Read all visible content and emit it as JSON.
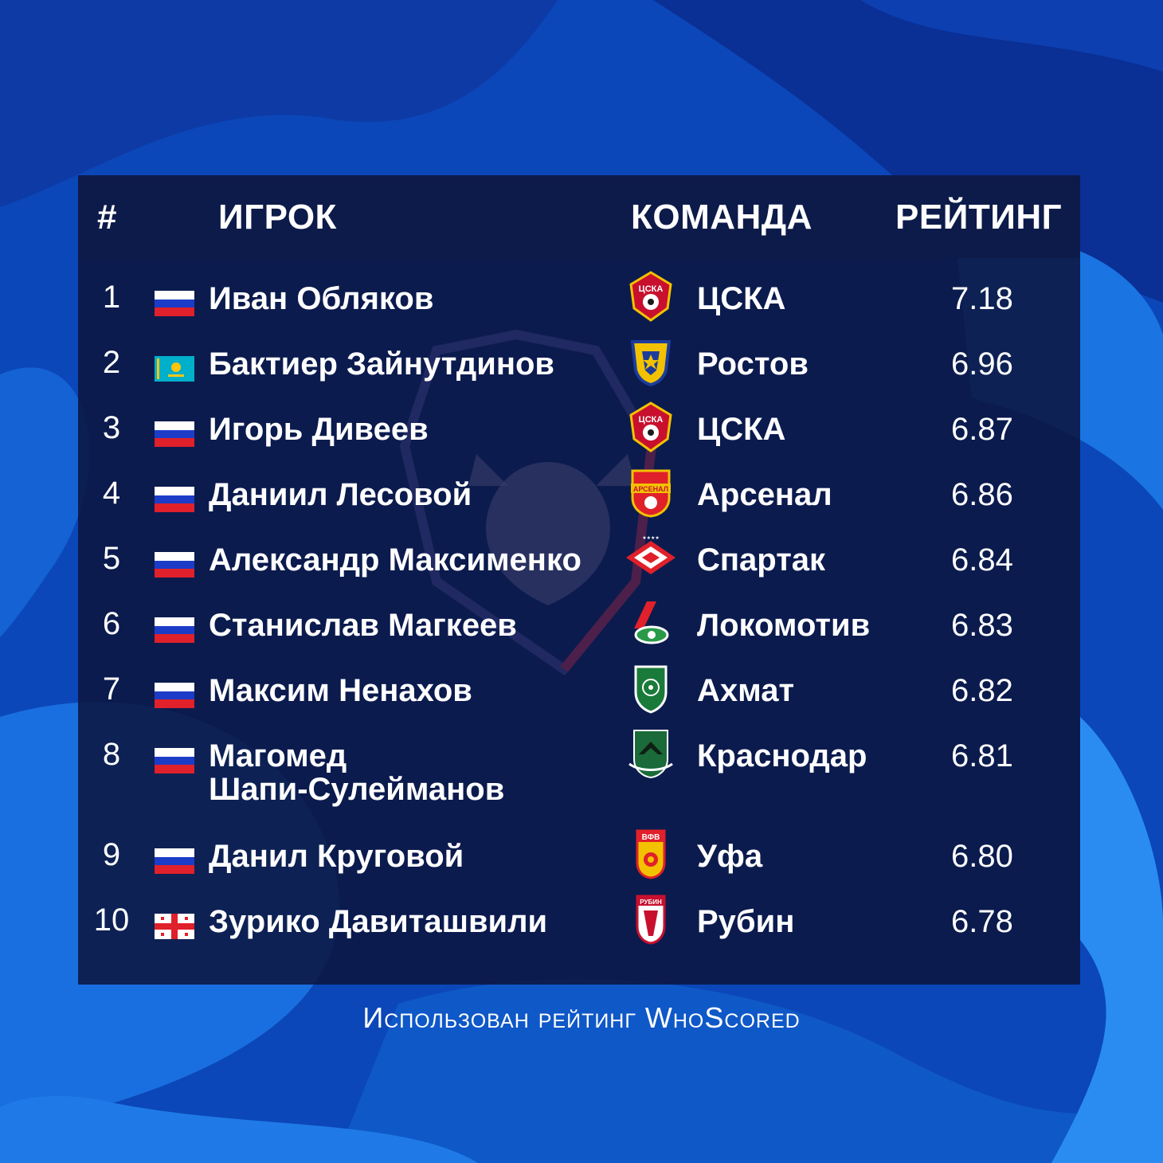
{
  "headers": {
    "rank": "#",
    "player": "ИГРОК",
    "team": "КОМАНДА",
    "rating": "РЕЙТИНГ"
  },
  "rows": [
    {
      "rank": "1",
      "flag": "russia-flag",
      "player": "Иван Обляков",
      "team": "ЦСКА",
      "crest": "cska-crest",
      "rating": "7.18"
    },
    {
      "rank": "2",
      "flag": "kazakhstan-flag",
      "player": "Бактиер Зайнутдинов",
      "team": "Ростов",
      "crest": "rostov-crest",
      "rating": "6.96"
    },
    {
      "rank": "3",
      "flag": "russia-flag",
      "player": "Игорь Дивеев",
      "team": "ЦСКА",
      "crest": "cska-crest",
      "rating": "6.87"
    },
    {
      "rank": "4",
      "flag": "russia-flag",
      "player": "Даниил Лесовой",
      "team": "Арсенал",
      "crest": "arsenal-crest",
      "rating": "6.86"
    },
    {
      "rank": "5",
      "flag": "russia-flag",
      "player": "Александр Максименко",
      "team": "Спартак",
      "crest": "spartak-crest",
      "rating": "6.84"
    },
    {
      "rank": "6",
      "flag": "russia-flag",
      "player": "Станислав Магкеев",
      "team": "Локомотив",
      "crest": "lokomotiv-crest",
      "rating": "6.83"
    },
    {
      "rank": "7",
      "flag": "russia-flag",
      "player": "Максим Ненахов",
      "team": "Ахмат",
      "crest": "akhmat-crest",
      "rating": "6.82"
    },
    {
      "rank": "8",
      "flag": "russia-flag",
      "player_line1": "Магомед",
      "player_line2": "Шапи-Сулейманов",
      "team": "Краснодар",
      "crest": "krasnodar-crest",
      "rating": "6.81"
    },
    {
      "rank": "9",
      "flag": "russia-flag",
      "player": "Данил Круговой",
      "team": "Уфа",
      "crest": "ufa-crest",
      "rating": "6.80"
    },
    {
      "rank": "10",
      "flag": "georgia-flag",
      "player": "Зурико Давиташвили",
      "team": "Рубин",
      "crest": "rubin-crest",
      "rating": "6.78"
    }
  ],
  "crest_text": {
    "cska": "ЦСКА",
    "arsenal": "АРСЕНАЛ",
    "ufa": "ВФВ",
    "rubin": "РУБИН"
  },
  "footer": "Использован рейтинг WhoScored",
  "colors": {
    "background": "#0b47b8",
    "panel": "#0c143c",
    "header": "#0d1b4a",
    "text": "#ffffff"
  }
}
